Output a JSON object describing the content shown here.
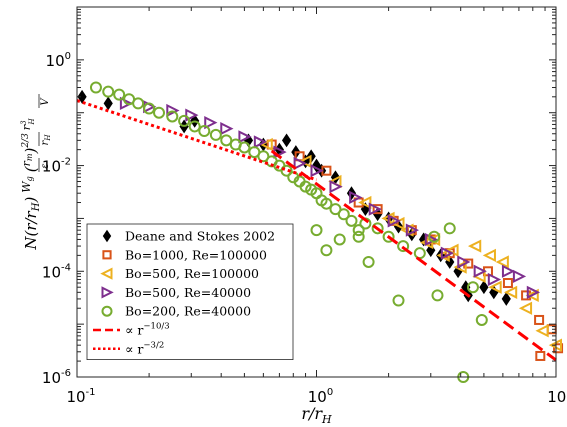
{
  "chart_data": {
    "type": "scatter",
    "xscale": "log",
    "yscale": "log",
    "xlim": [
      0.1,
      10
    ],
    "ylim": [
      1e-06,
      10
    ],
    "grid": false,
    "legend_position": "bottom-left",
    "x_ticks": [
      {
        "base": "10",
        "exp": "-1",
        "value": 0.1
      },
      {
        "base": "10",
        "exp": "0",
        "value": 1
      },
      {
        "base": "10",
        "exp": "1",
        "value": 10
      }
    ],
    "y_ticks": [
      {
        "base": "10",
        "exp": "-6",
        "value": 1e-06
      },
      {
        "base": "10",
        "exp": "-4",
        "value": 0.0001
      },
      {
        "base": "10",
        "exp": "-2",
        "value": 0.01
      },
      {
        "base": "10",
        "exp": "0",
        "value": 1
      }
    ],
    "xlabel": "r/r_H",
    "ylabel": "N(r/r_H) (W_g/ε) (r_m/r_H)^{2/3} r_H^3/V",
    "series": [
      {
        "name": "Deane and Stokes 2002",
        "marker": "diamond",
        "color": "#000000",
        "filled": true,
        "points": [
          [
            0.105,
            0.2
          ],
          [
            0.135,
            0.15
          ],
          [
            0.28,
            0.055
          ],
          [
            0.31,
            0.07
          ],
          [
            0.52,
            0.03
          ],
          [
            0.6,
            0.025
          ],
          [
            0.7,
            0.02
          ],
          [
            0.75,
            0.03
          ],
          [
            0.82,
            0.018
          ],
          [
            0.9,
            0.012
          ],
          [
            0.95,
            0.015
          ],
          [
            1.0,
            0.01
          ],
          [
            1.05,
            0.008
          ],
          [
            1.2,
            0.006
          ],
          [
            1.4,
            0.003
          ],
          [
            1.6,
            0.0015
          ],
          [
            1.8,
            0.0012
          ],
          [
            2.0,
            0.001
          ],
          [
            2.2,
            0.0007
          ],
          [
            2.5,
            0.0005
          ],
          [
            2.8,
            0.0004
          ],
          [
            3.0,
            0.00025
          ],
          [
            3.3,
            0.0002
          ],
          [
            3.6,
            0.00015
          ],
          [
            3.9,
            0.0001
          ],
          [
            4.2,
            5e-05
          ],
          [
            4.3,
            3.5e-05
          ],
          [
            5.0,
            5e-05
          ],
          [
            5.5,
            4e-05
          ],
          [
            6.2,
            3e-05
          ]
        ]
      },
      {
        "name": "Bo=1000, Re=100000",
        "marker": "square",
        "color": "#d95319",
        "filled": false,
        "points": [
          [
            0.65,
            0.025
          ],
          [
            0.85,
            0.015
          ],
          [
            1.1,
            0.008
          ],
          [
            1.5,
            0.002
          ],
          [
            1.8,
            0.0015
          ],
          [
            2.1,
            0.0009
          ],
          [
            2.5,
            0.0006
          ],
          [
            3.0,
            0.0004
          ],
          [
            3.6,
            0.00022
          ],
          [
            4.3,
            0.00014
          ],
          [
            5.2,
            0.0001
          ],
          [
            6.3,
            6e-05
          ],
          [
            7.5,
            3.5e-05
          ],
          [
            8.5,
            1.2e-05
          ],
          [
            9.6,
            8e-06
          ],
          [
            8.6,
            2.5e-06
          ],
          [
            10.2,
            3.5e-06
          ]
        ]
      },
      {
        "name": "Bo=500, Re=100000",
        "marker": "triangle-left",
        "color": "#edb120",
        "filled": false,
        "points": [
          [
            0.62,
            0.025
          ],
          [
            0.9,
            0.012
          ],
          [
            1.2,
            0.005
          ],
          [
            1.6,
            0.002
          ],
          [
            2.0,
            0.001
          ],
          [
            2.4,
            0.0006
          ],
          [
            2.9,
            0.00035
          ],
          [
            3.4,
            0.0002
          ],
          [
            4.0,
            0.00012
          ],
          [
            4.8,
            8e-05
          ],
          [
            5.6,
            5e-05
          ],
          [
            6.5,
            4e-05
          ],
          [
            7.5,
            2e-05
          ],
          [
            8.8,
            7.5e-06
          ],
          [
            10.0,
            4e-06
          ],
          [
            6.0,
            0.00015
          ],
          [
            5.3,
            0.0002
          ],
          [
            4.6,
            0.0003
          ],
          [
            8.0,
            3.5e-05
          ],
          [
            3.7,
            0.00025
          ],
          [
            3.1,
            0.0004
          ],
          [
            2.2,
            0.0008
          ]
        ]
      },
      {
        "name": "Bo=500, Re=40000",
        "marker": "triangle-right",
        "color": "#7e2f8e",
        "filled": false,
        "points": [
          [
            0.16,
            0.15
          ],
          [
            0.2,
            0.13
          ],
          [
            0.25,
            0.11
          ],
          [
            0.3,
            0.09
          ],
          [
            0.36,
            0.065
          ],
          [
            0.42,
            0.05
          ],
          [
            0.5,
            0.035
          ],
          [
            0.58,
            0.028
          ],
          [
            0.7,
            0.018
          ],
          [
            0.85,
            0.011
          ],
          [
            1.0,
            0.008
          ],
          [
            1.2,
            0.004
          ],
          [
            1.45,
            0.0025
          ],
          [
            1.75,
            0.0015
          ],
          [
            2.1,
            0.0009
          ],
          [
            2.5,
            0.0006
          ],
          [
            3.0,
            0.0004
          ],
          [
            3.5,
            0.00022
          ],
          [
            4.1,
            0.00015
          ],
          [
            4.8,
            0.0001
          ],
          [
            5.5,
            7e-05
          ],
          [
            6.3,
            0.0001
          ],
          [
            7.0,
            8e-05
          ],
          [
            8.0,
            4e-05
          ]
        ]
      },
      {
        "name": "Bo=200, Re=40000",
        "marker": "circle",
        "color": "#77ac30",
        "filled": false,
        "points": [
          [
            0.12,
            0.3
          ],
          [
            0.135,
            0.25
          ],
          [
            0.15,
            0.22
          ],
          [
            0.165,
            0.18
          ],
          [
            0.18,
            0.15
          ],
          [
            0.2,
            0.12
          ],
          [
            0.22,
            0.1
          ],
          [
            0.25,
            0.085
          ],
          [
            0.28,
            0.07
          ],
          [
            0.31,
            0.055
          ],
          [
            0.34,
            0.045
          ],
          [
            0.38,
            0.038
          ],
          [
            0.42,
            0.03
          ],
          [
            0.46,
            0.025
          ],
          [
            0.5,
            0.022
          ],
          [
            0.55,
            0.018
          ],
          [
            0.6,
            0.015
          ],
          [
            0.65,
            0.012
          ],
          [
            0.7,
            0.01
          ],
          [
            0.75,
            0.008
          ],
          [
            0.8,
            0.006
          ],
          [
            0.85,
            0.005
          ],
          [
            0.9,
            0.004
          ],
          [
            0.95,
            0.0035
          ],
          [
            1.0,
            0.003
          ],
          [
            1.05,
            0.0022
          ],
          [
            1.1,
            0.0019
          ],
          [
            1.2,
            0.0015
          ],
          [
            1.3,
            0.0012
          ],
          [
            1.4,
            0.0009
          ],
          [
            1.5,
            0.0006
          ],
          [
            1.6,
            0.0008
          ],
          [
            1.8,
            0.00065
          ],
          [
            2.0,
            0.00045
          ],
          [
            2.3,
            0.0003
          ],
          [
            2.7,
            0.00022
          ],
          [
            3.1,
            0.00045
          ],
          [
            3.6,
            0.00065
          ],
          [
            1.0,
            0.0006
          ],
          [
            1.25,
            0.0004
          ],
          [
            1.65,
            0.00015
          ],
          [
            1.1,
            0.00025
          ],
          [
            1.5,
            0.00045
          ],
          [
            2.2,
            2.8e-05
          ],
          [
            3.2,
            3.5e-05
          ],
          [
            4.5,
            5e-05
          ],
          [
            4.9,
            1.2e-05
          ],
          [
            4.1,
            1e-06
          ]
        ]
      }
    ],
    "fit_lines": [
      {
        "name": "∝ r^{-10/3}",
        "label_prefix": "∝ r",
        "label_exp": "−10/3",
        "style": "dashed",
        "color": "#ff0000",
        "x_range": [
          0.65,
          10
        ],
        "anchor": [
          1,
          0.0045
        ],
        "slope": -3.3333
      },
      {
        "name": "∝ r^{-3/2}",
        "label_prefix": "∝ r",
        "label_exp": "−3/2",
        "style": "dotted",
        "color": "#ff0000",
        "x_range": [
          0.1,
          1.0
        ],
        "anchor": [
          0.1,
          0.17
        ],
        "slope": -1.5
      }
    ]
  }
}
